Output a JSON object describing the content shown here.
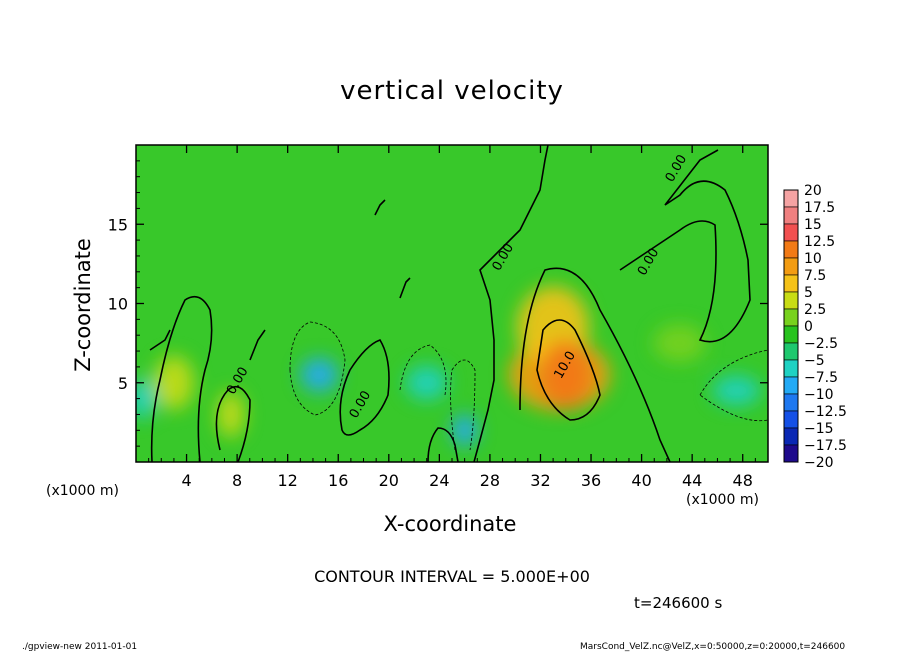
{
  "footer": {
    "left": "./gpview-new  2011-01-01",
    "right": "MarsCond_VelZ.nc@VelZ,x=0:50000,z=0:20000,t=246600"
  },
  "chart_data": {
    "type": "heatmap",
    "title": "vertical velocity",
    "xlabel": "X-coordinate",
    "ylabel": "Z-coordinate",
    "x_unit_label": "(x1000 m)",
    "y_unit_label": "(x1000 m)",
    "xlim": [
      0,
      50
    ],
    "ylim": [
      0,
      20
    ],
    "x_ticks": [
      4,
      8,
      12,
      16,
      20,
      24,
      28,
      32,
      36,
      40,
      44,
      48
    ],
    "y_ticks": [
      5,
      10,
      15
    ],
    "contour_interval_text": "CONTOUR INTERVAL = 5.000E+00",
    "time_text": "t=246600 s",
    "contour_labels": [
      {
        "text": "0.00",
        "x": 29.3,
        "z": 12.8
      },
      {
        "text": "0.00",
        "x": 40.8,
        "z": 12.5
      },
      {
        "text": "0.00",
        "x": 43.0,
        "z": 18.4
      },
      {
        "text": "0.00",
        "x": 18.0,
        "z": 3.5
      },
      {
        "text": "0.00",
        "x": 8.3,
        "z": 5.0
      },
      {
        "text": "10.0",
        "x": 34.2,
        "z": 6.0
      }
    ],
    "colorbar": {
      "labels": [
        "20",
        "17.5",
        "15",
        "12.5",
        "10",
        "7.5",
        "5",
        "2.5",
        "0",
        "−2.5",
        "−5",
        "−7.5",
        "−10",
        "−12.5",
        "−15",
        "−17.5",
        "−20"
      ],
      "colors": [
        "#f5a3a3",
        "#f08080",
        "#f25050",
        "#f27a16",
        "#f39c12",
        "#f5c218",
        "#c8dc14",
        "#78d21e",
        "#28c31e",
        "#1ec86e",
        "#1ed2c3",
        "#23aaf5",
        "#1e78f0",
        "#1450e6",
        "#0a28b4",
        "#1e0a8c",
        "#5a14a0"
      ]
    },
    "field_features": [
      {
        "x": 33.5,
        "z": 5.5,
        "w": 10.0
      },
      {
        "x": 33.0,
        "z": 8.5,
        "w": 7.0
      },
      {
        "x": 3.0,
        "z": 5.0,
        "w": 5.0
      },
      {
        "x": 7.5,
        "z": 3.0,
        "w": 4.0
      },
      {
        "x": 14.5,
        "z": 5.5,
        "w": -7.5
      },
      {
        "x": 26.0,
        "z": 2.0,
        "w": -7.5
      },
      {
        "x": 23.0,
        "z": 5.0,
        "w": -5.0
      },
      {
        "x": 47.5,
        "z": 4.5,
        "w": -5.0
      },
      {
        "x": 43.0,
        "z": 7.5,
        "w": 2.5
      },
      {
        "x": 0.5,
        "z": 4.0,
        "w": -5.0
      }
    ]
  }
}
